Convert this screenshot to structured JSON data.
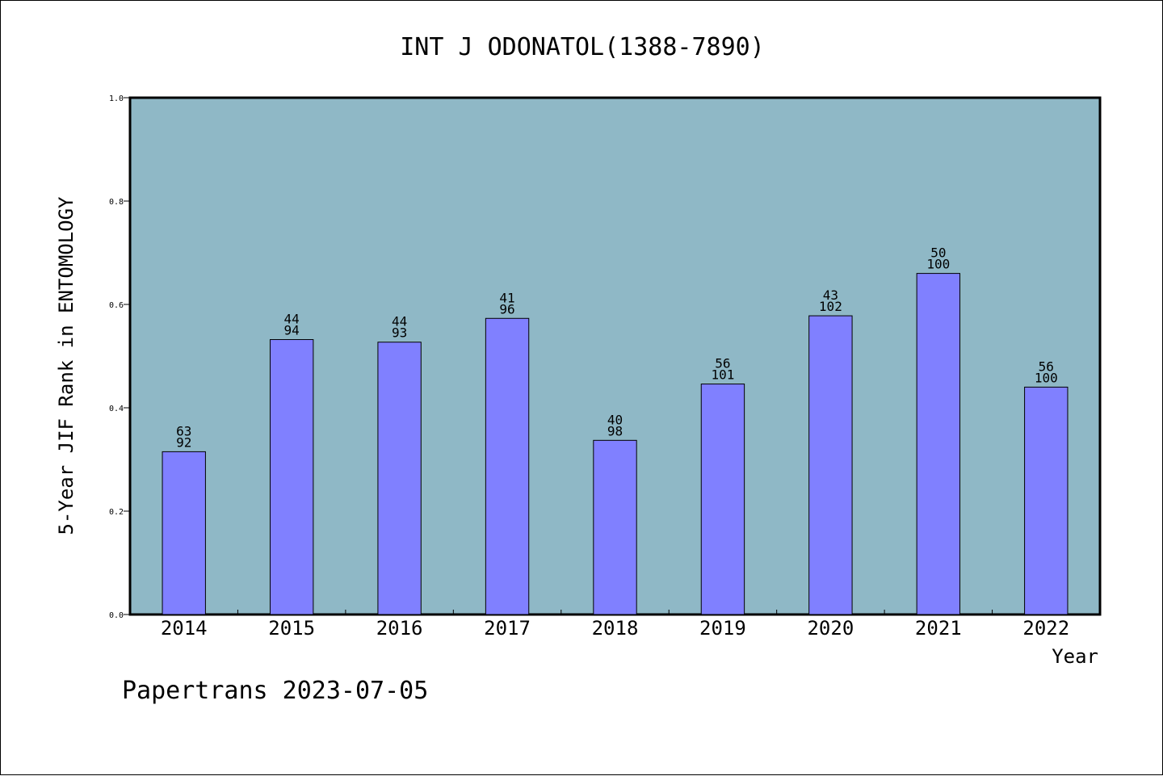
{
  "chart_data": {
    "type": "bar",
    "title": "INT J ODONATOL(1388-7890)",
    "xlabel": "Year",
    "ylabel": "5-Year JIF Rank in ENTOMOLOGY",
    "ylim": [
      0,
      1.0
    ],
    "yticks": [
      "0.0",
      "0.2",
      "0.4",
      "0.6",
      "0.8",
      "1.0"
    ],
    "categories": [
      "2014",
      "2015",
      "2016",
      "2017",
      "2018",
      "2019",
      "2020",
      "2021",
      "2022"
    ],
    "values": [
      0.315,
      0.532,
      0.527,
      0.573,
      0.337,
      0.446,
      0.578,
      0.66,
      0.44
    ],
    "rank": [
      "63",
      "44",
      "44",
      "41",
      "40",
      "56",
      "43",
      "50",
      "56"
    ],
    "total": [
      "92",
      "94",
      "93",
      "96",
      "98",
      "101",
      "102",
      "100",
      "100"
    ],
    "grid": false,
    "legend": "none",
    "colors": {
      "plot_bg": "#8fb8c6",
      "bar_fill": "#8080ff",
      "bar_stroke": "#000000"
    }
  },
  "footer": {
    "text": "Papertrans 2023-07-05"
  }
}
